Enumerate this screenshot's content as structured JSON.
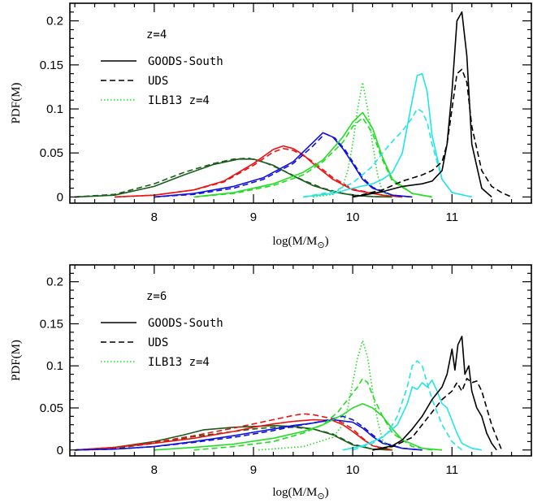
{
  "chart_data": [
    {
      "type": "line",
      "panel": "top",
      "annotation": "z=4",
      "xlabel_main": "log(M/M",
      "xlabel_sub": "⊙",
      "xlabel_close": ")",
      "ylabel": "PDF(M)",
      "xlim": [
        7.15,
        11.8
      ],
      "ylim": [
        -0.007,
        0.22
      ],
      "xticks": [
        8,
        9,
        10,
        11
      ],
      "xtick_labels": [
        "8",
        "9",
        "10",
        "11"
      ],
      "yticks": [
        0,
        0.05,
        0.1,
        0.15,
        0.2
      ],
      "ytick_labels": [
        "0",
        "0.05",
        "0.1",
        "0.15",
        "0.2"
      ],
      "legend_position": "upper-left",
      "legend": [
        {
          "label": "GOODS-South",
          "style": "solid",
          "color": "#000000"
        },
        {
          "label": "UDS",
          "style": "dashed",
          "color": "#000000"
        },
        {
          "label": "ILB13 z=4",
          "style": "dotted",
          "color": "#22dd22"
        }
      ],
      "series": [
        {
          "color": "#1a5c1a",
          "style": "solid",
          "x": [
            7.2,
            7.6,
            8.0,
            8.3,
            8.6,
            8.85,
            9.0,
            9.2,
            9.4,
            9.6,
            9.8,
            10.0,
            10.2,
            10.4
          ],
          "y": [
            0,
            0.002,
            0.012,
            0.025,
            0.037,
            0.043,
            0.043,
            0.036,
            0.024,
            0.013,
            0.006,
            0.002,
            0.0005,
            0
          ]
        },
        {
          "color": "#1a5c1a",
          "style": "dashed",
          "x": [
            7.2,
            7.6,
            8.0,
            8.3,
            8.6,
            8.8,
            8.95,
            9.1,
            9.3,
            9.5,
            9.7,
            9.9,
            10.1,
            10.3
          ],
          "y": [
            0,
            0.003,
            0.015,
            0.028,
            0.038,
            0.043,
            0.044,
            0.04,
            0.03,
            0.019,
            0.01,
            0.004,
            0.001,
            0
          ]
        },
        {
          "color": "#ee1111",
          "style": "solid",
          "x": [
            7.6,
            8.0,
            8.4,
            8.7,
            9.0,
            9.2,
            9.3,
            9.4,
            9.5,
            9.6,
            9.8,
            10.0,
            10.3,
            10.5
          ],
          "y": [
            0,
            0.002,
            0.008,
            0.018,
            0.038,
            0.054,
            0.058,
            0.055,
            0.048,
            0.038,
            0.02,
            0.008,
            0.002,
            0
          ]
        },
        {
          "color": "#ee1111",
          "style": "dashed",
          "x": [
            7.6,
            8.0,
            8.4,
            8.7,
            9.0,
            9.2,
            9.3,
            9.4,
            9.5,
            9.6,
            9.8,
            10.0,
            10.3,
            10.5
          ],
          "y": [
            0,
            0.002,
            0.008,
            0.017,
            0.036,
            0.051,
            0.055,
            0.053,
            0.047,
            0.04,
            0.022,
            0.009,
            0.002,
            0
          ]
        },
        {
          "color": "#1111dd",
          "style": "solid",
          "x": [
            8.0,
            8.4,
            8.8,
            9.1,
            9.4,
            9.6,
            9.7,
            9.8,
            9.9,
            10.0,
            10.1,
            10.2,
            10.4,
            10.6
          ],
          "y": [
            0,
            0.004,
            0.012,
            0.022,
            0.04,
            0.062,
            0.073,
            0.068,
            0.055,
            0.038,
            0.02,
            0.01,
            0.002,
            0
          ]
        },
        {
          "color": "#1111dd",
          "style": "dashed",
          "x": [
            8.0,
            8.4,
            8.8,
            9.1,
            9.4,
            9.6,
            9.72,
            9.82,
            9.92,
            10.0,
            10.1,
            10.2,
            10.4,
            10.6
          ],
          "y": [
            0,
            0.003,
            0.01,
            0.02,
            0.038,
            0.058,
            0.072,
            0.067,
            0.054,
            0.04,
            0.022,
            0.011,
            0.002,
            0
          ]
        },
        {
          "color": "#22dd22",
          "style": "solid",
          "x": [
            8.4,
            8.8,
            9.2,
            9.5,
            9.7,
            9.9,
            10.0,
            10.1,
            10.2,
            10.3,
            10.4,
            10.6,
            10.8
          ],
          "y": [
            0,
            0.005,
            0.015,
            0.028,
            0.042,
            0.068,
            0.085,
            0.096,
            0.078,
            0.045,
            0.02,
            0.004,
            0
          ]
        },
        {
          "color": "#22dd22",
          "style": "dashed",
          "x": [
            8.4,
            8.8,
            9.2,
            9.5,
            9.7,
            9.9,
            10.0,
            10.1,
            10.2,
            10.3,
            10.4,
            10.6,
            10.8
          ],
          "y": [
            0,
            0.004,
            0.013,
            0.025,
            0.04,
            0.062,
            0.08,
            0.09,
            0.072,
            0.042,
            0.018,
            0.004,
            0
          ]
        },
        {
          "color": "#22dd22",
          "style": "dotted",
          "x": [
            9.6,
            9.8,
            9.9,
            9.95,
            10.0,
            10.05,
            10.1,
            10.15,
            10.2,
            10.25,
            10.3,
            10.4
          ],
          "y": [
            0,
            0.003,
            0.012,
            0.03,
            0.06,
            0.1,
            0.13,
            0.1,
            0.06,
            0.025,
            0.006,
            0
          ]
        },
        {
          "color": "#22e5e5",
          "style": "solid",
          "x": [
            9.5,
            9.8,
            10.0,
            10.2,
            10.3,
            10.4,
            10.5,
            10.6,
            10.65,
            10.7,
            10.75,
            10.8,
            10.9,
            11.0,
            11.2
          ],
          "y": [
            0,
            0.004,
            0.01,
            0.015,
            0.02,
            0.028,
            0.05,
            0.11,
            0.138,
            0.14,
            0.12,
            0.07,
            0.02,
            0.005,
            0
          ]
        },
        {
          "color": "#22e5e5",
          "style": "dashed",
          "x": [
            9.5,
            9.8,
            10.0,
            10.2,
            10.3,
            10.4,
            10.5,
            10.6,
            10.65,
            10.7,
            10.75,
            10.8,
            10.9,
            11.0,
            11.2
          ],
          "y": [
            0,
            0.006,
            0.016,
            0.035,
            0.05,
            0.063,
            0.075,
            0.09,
            0.1,
            0.097,
            0.085,
            0.06,
            0.02,
            0.005,
            0
          ]
        },
        {
          "color": "#000000",
          "style": "solid",
          "x": [
            10.0,
            10.3,
            10.5,
            10.7,
            10.8,
            10.9,
            10.95,
            11.0,
            11.05,
            11.1,
            11.15,
            11.2,
            11.3,
            11.4
          ],
          "y": [
            0,
            0.006,
            0.012,
            0.015,
            0.018,
            0.03,
            0.06,
            0.12,
            0.2,
            0.21,
            0.16,
            0.06,
            0.01,
            0
          ]
        },
        {
          "color": "#000000",
          "style": "dashed",
          "x": [
            10.0,
            10.3,
            10.5,
            10.7,
            10.8,
            10.9,
            10.95,
            11.0,
            11.05,
            11.1,
            11.15,
            11.2,
            11.3,
            11.4,
            11.5,
            11.6
          ],
          "y": [
            0,
            0.008,
            0.018,
            0.025,
            0.03,
            0.04,
            0.06,
            0.1,
            0.14,
            0.145,
            0.13,
            0.08,
            0.03,
            0.012,
            0.005,
            0
          ]
        }
      ]
    },
    {
      "type": "line",
      "panel": "bottom",
      "annotation": "z=6",
      "xlabel_main": "log(M/M",
      "xlabel_sub": "⊙",
      "xlabel_close": ")",
      "ylabel": "PDF(M)",
      "xlim": [
        7.15,
        11.8
      ],
      "ylim": [
        -0.007,
        0.22
      ],
      "xticks": [
        8,
        9,
        10,
        11
      ],
      "xtick_labels": [
        "8",
        "9",
        "10",
        "11"
      ],
      "yticks": [
        0,
        0.05,
        0.1,
        0.15,
        0.2
      ],
      "ytick_labels": [
        "0",
        "0.05",
        "0.1",
        "0.15",
        "0.2"
      ],
      "legend_position": "upper-left",
      "legend": [
        {
          "label": "GOODS-South",
          "style": "solid",
          "color": "#000000"
        },
        {
          "label": "UDS",
          "style": "dashed",
          "color": "#000000"
        },
        {
          "label": "ILB13 z=4",
          "style": "dotted",
          "color": "#22dd22"
        }
      ],
      "series": [
        {
          "color": "#1a5c1a",
          "style": "solid",
          "x": [
            7.2,
            7.6,
            8.0,
            8.3,
            8.5,
            8.8,
            9.0,
            9.2,
            9.4,
            9.6,
            9.8,
            9.9,
            10.0,
            10.2,
            10.4
          ],
          "y": [
            0,
            0.003,
            0.01,
            0.018,
            0.024,
            0.027,
            0.028,
            0.029,
            0.028,
            0.025,
            0.018,
            0.012,
            0.006,
            0.001,
            0
          ]
        },
        {
          "color": "#1a5c1a",
          "style": "dashed",
          "x": [
            7.2,
            7.6,
            8.0,
            8.4,
            8.8,
            9.0,
            9.2,
            9.4,
            9.6,
            9.8,
            9.9,
            10.0,
            10.2,
            10.4
          ],
          "y": [
            0,
            0.002,
            0.008,
            0.016,
            0.022,
            0.025,
            0.027,
            0.027,
            0.025,
            0.019,
            0.013,
            0.007,
            0.001,
            0
          ]
        },
        {
          "color": "#ee1111",
          "style": "solid",
          "x": [
            7.2,
            7.6,
            8.0,
            8.4,
            8.8,
            9.0,
            9.2,
            9.4,
            9.6,
            9.8,
            9.9,
            10.0,
            10.1,
            10.2,
            10.4
          ],
          "y": [
            0,
            0.003,
            0.008,
            0.014,
            0.022,
            0.027,
            0.031,
            0.034,
            0.036,
            0.035,
            0.03,
            0.022,
            0.013,
            0.005,
            0
          ]
        },
        {
          "color": "#ee1111",
          "style": "dashed",
          "x": [
            7.2,
            7.6,
            8.0,
            8.4,
            8.8,
            9.0,
            9.2,
            9.4,
            9.5,
            9.6,
            9.8,
            9.9,
            10.0,
            10.1,
            10.2,
            10.4
          ],
          "y": [
            0,
            0.003,
            0.009,
            0.017,
            0.026,
            0.031,
            0.036,
            0.041,
            0.043,
            0.042,
            0.037,
            0.032,
            0.025,
            0.014,
            0.005,
            0
          ]
        },
        {
          "color": "#1111dd",
          "style": "solid",
          "x": [
            7.2,
            7.6,
            8.0,
            8.4,
            8.8,
            9.0,
            9.2,
            9.4,
            9.6,
            9.8,
            10.0,
            10.1,
            10.2,
            10.3,
            10.5,
            10.7
          ],
          "y": [
            0,
            0.001,
            0.004,
            0.01,
            0.017,
            0.021,
            0.025,
            0.029,
            0.032,
            0.036,
            0.033,
            0.026,
            0.016,
            0.008,
            0.002,
            0
          ]
        },
        {
          "color": "#1111dd",
          "style": "dashed",
          "x": [
            7.2,
            7.6,
            8.0,
            8.4,
            8.8,
            9.0,
            9.2,
            9.4,
            9.6,
            9.8,
            9.9,
            10.0,
            10.1,
            10.2,
            10.3,
            10.5,
            10.7
          ],
          "y": [
            0,
            0.001,
            0.004,
            0.009,
            0.015,
            0.019,
            0.023,
            0.028,
            0.032,
            0.037,
            0.04,
            0.036,
            0.028,
            0.018,
            0.009,
            0.002,
            0
          ]
        },
        {
          "color": "#22dd22",
          "style": "solid",
          "x": [
            8.0,
            8.4,
            8.8,
            9.2,
            9.5,
            9.7,
            9.9,
            10.0,
            10.1,
            10.2,
            10.3,
            10.4,
            10.5,
            10.7,
            10.9
          ],
          "y": [
            0,
            0.003,
            0.007,
            0.014,
            0.022,
            0.03,
            0.042,
            0.05,
            0.055,
            0.05,
            0.04,
            0.025,
            0.012,
            0.002,
            0
          ]
        },
        {
          "color": "#22dd22",
          "style": "dashed",
          "x": [
            8.4,
            8.8,
            9.2,
            9.5,
            9.7,
            9.85,
            9.95,
            10.05,
            10.1,
            10.15,
            10.2,
            10.3,
            10.4,
            10.6,
            10.8
          ],
          "y": [
            0,
            0.004,
            0.01,
            0.02,
            0.03,
            0.045,
            0.06,
            0.075,
            0.085,
            0.08,
            0.065,
            0.04,
            0.02,
            0.004,
            0
          ]
        },
        {
          "color": "#22dd22",
          "style": "dotted",
          "x": [
            9.05,
            9.5,
            9.8,
            9.9,
            9.95,
            10.0,
            10.05,
            10.1,
            10.15,
            10.2,
            10.25,
            10.3,
            10.4
          ],
          "y": [
            0,
            0.004,
            0.015,
            0.03,
            0.05,
            0.08,
            0.11,
            0.13,
            0.11,
            0.07,
            0.035,
            0.012,
            0
          ]
        },
        {
          "color": "#22e5e5",
          "style": "solid",
          "x": [
            9.9,
            10.1,
            10.3,
            10.45,
            10.55,
            10.6,
            10.65,
            10.7,
            10.75,
            10.8,
            10.85,
            10.9,
            10.95,
            11.0,
            11.05,
            11.1,
            11.2,
            11.3
          ],
          "y": [
            0,
            0.005,
            0.015,
            0.03,
            0.055,
            0.075,
            0.072,
            0.08,
            0.075,
            0.083,
            0.07,
            0.055,
            0.05,
            0.035,
            0.02,
            0.008,
            0.002,
            0
          ]
        },
        {
          "color": "#22e5e5",
          "style": "dashed",
          "x": [
            10.0,
            10.2,
            10.35,
            10.45,
            10.55,
            10.6,
            10.65,
            10.7,
            10.75,
            10.8,
            10.85,
            10.9,
            11.0,
            11.1
          ],
          "y": [
            0,
            0.008,
            0.02,
            0.04,
            0.075,
            0.1,
            0.106,
            0.1,
            0.08,
            0.06,
            0.045,
            0.03,
            0.01,
            0
          ]
        },
        {
          "color": "#000000",
          "style": "solid",
          "x": [
            10.2,
            10.4,
            10.5,
            10.6,
            10.7,
            10.8,
            10.9,
            10.95,
            11.0,
            11.03,
            11.06,
            11.1,
            11.13,
            11.17,
            11.2,
            11.25,
            11.3,
            11.35,
            11.4,
            11.45
          ],
          "y": [
            0,
            0.005,
            0.012,
            0.025,
            0.04,
            0.06,
            0.075,
            0.09,
            0.12,
            0.095,
            0.125,
            0.135,
            0.09,
            0.1,
            0.07,
            0.05,
            0.04,
            0.02,
            0.008,
            0
          ]
        },
        {
          "color": "#000000",
          "style": "dashed",
          "x": [
            10.2,
            10.4,
            10.6,
            10.7,
            10.8,
            10.9,
            11.0,
            11.05,
            11.1,
            11.15,
            11.2,
            11.25,
            11.3,
            11.35,
            11.4,
            11.5
          ],
          "y": [
            0,
            0.004,
            0.015,
            0.03,
            0.045,
            0.06,
            0.07,
            0.08,
            0.07,
            0.085,
            0.08,
            0.082,
            0.07,
            0.05,
            0.03,
            0
          ]
        }
      ]
    }
  ]
}
